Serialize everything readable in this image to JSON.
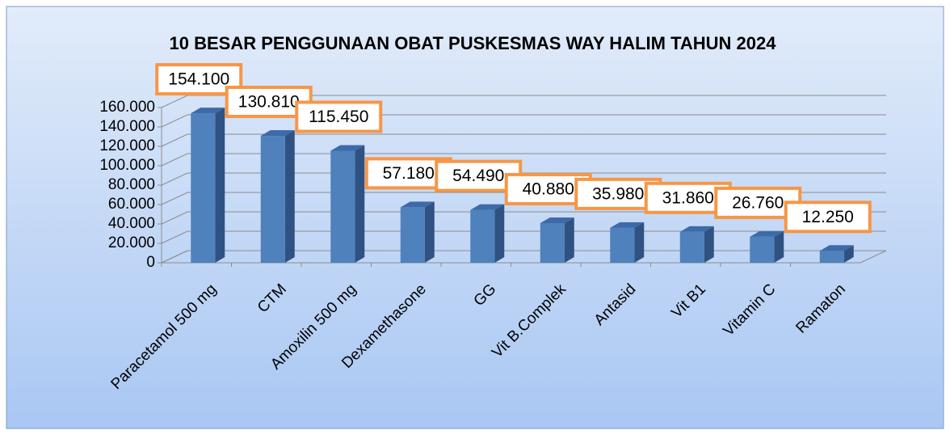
{
  "chart_data": {
    "type": "bar3d",
    "title": "10 BESAR PENGGUNAAN OBAT PUSKESMAS   WAY HALIM TAHUN 2024",
    "categories": [
      "Paracetamol 500 mg",
      "CTM",
      "Amoxilin 500  mg",
      "Dexamethasone",
      "GG",
      "Vit B.Complek",
      "Antasid",
      "Vit B1",
      "Vitamin C",
      "Ramaton"
    ],
    "values": [
      154100,
      130810,
      115450,
      57180,
      54490,
      40880,
      35980,
      31860,
      26760,
      12250
    ],
    "value_labels": [
      "154.100",
      "130.810",
      "115.450",
      "57.180",
      "54.490",
      "40.880",
      "35.980",
      "31.860",
      "26.760",
      "12.250"
    ],
    "color": "#4f81bd",
    "ylim": [
      0,
      160000
    ],
    "yticks": [
      {
        "value": 0,
        "label": "0"
      },
      {
        "value": 20000,
        "label": "20.000"
      },
      {
        "value": 40000,
        "label": "40.000"
      },
      {
        "value": 60000,
        "label": "60.000"
      },
      {
        "value": 80000,
        "label": "80.000"
      },
      {
        "value": 100000,
        "label": "100.000"
      },
      {
        "value": 120000,
        "label": "120.000"
      },
      {
        "value": 140000,
        "label": "140.000"
      },
      {
        "value": 160000,
        "label": "160.000"
      }
    ],
    "grid": true
  }
}
